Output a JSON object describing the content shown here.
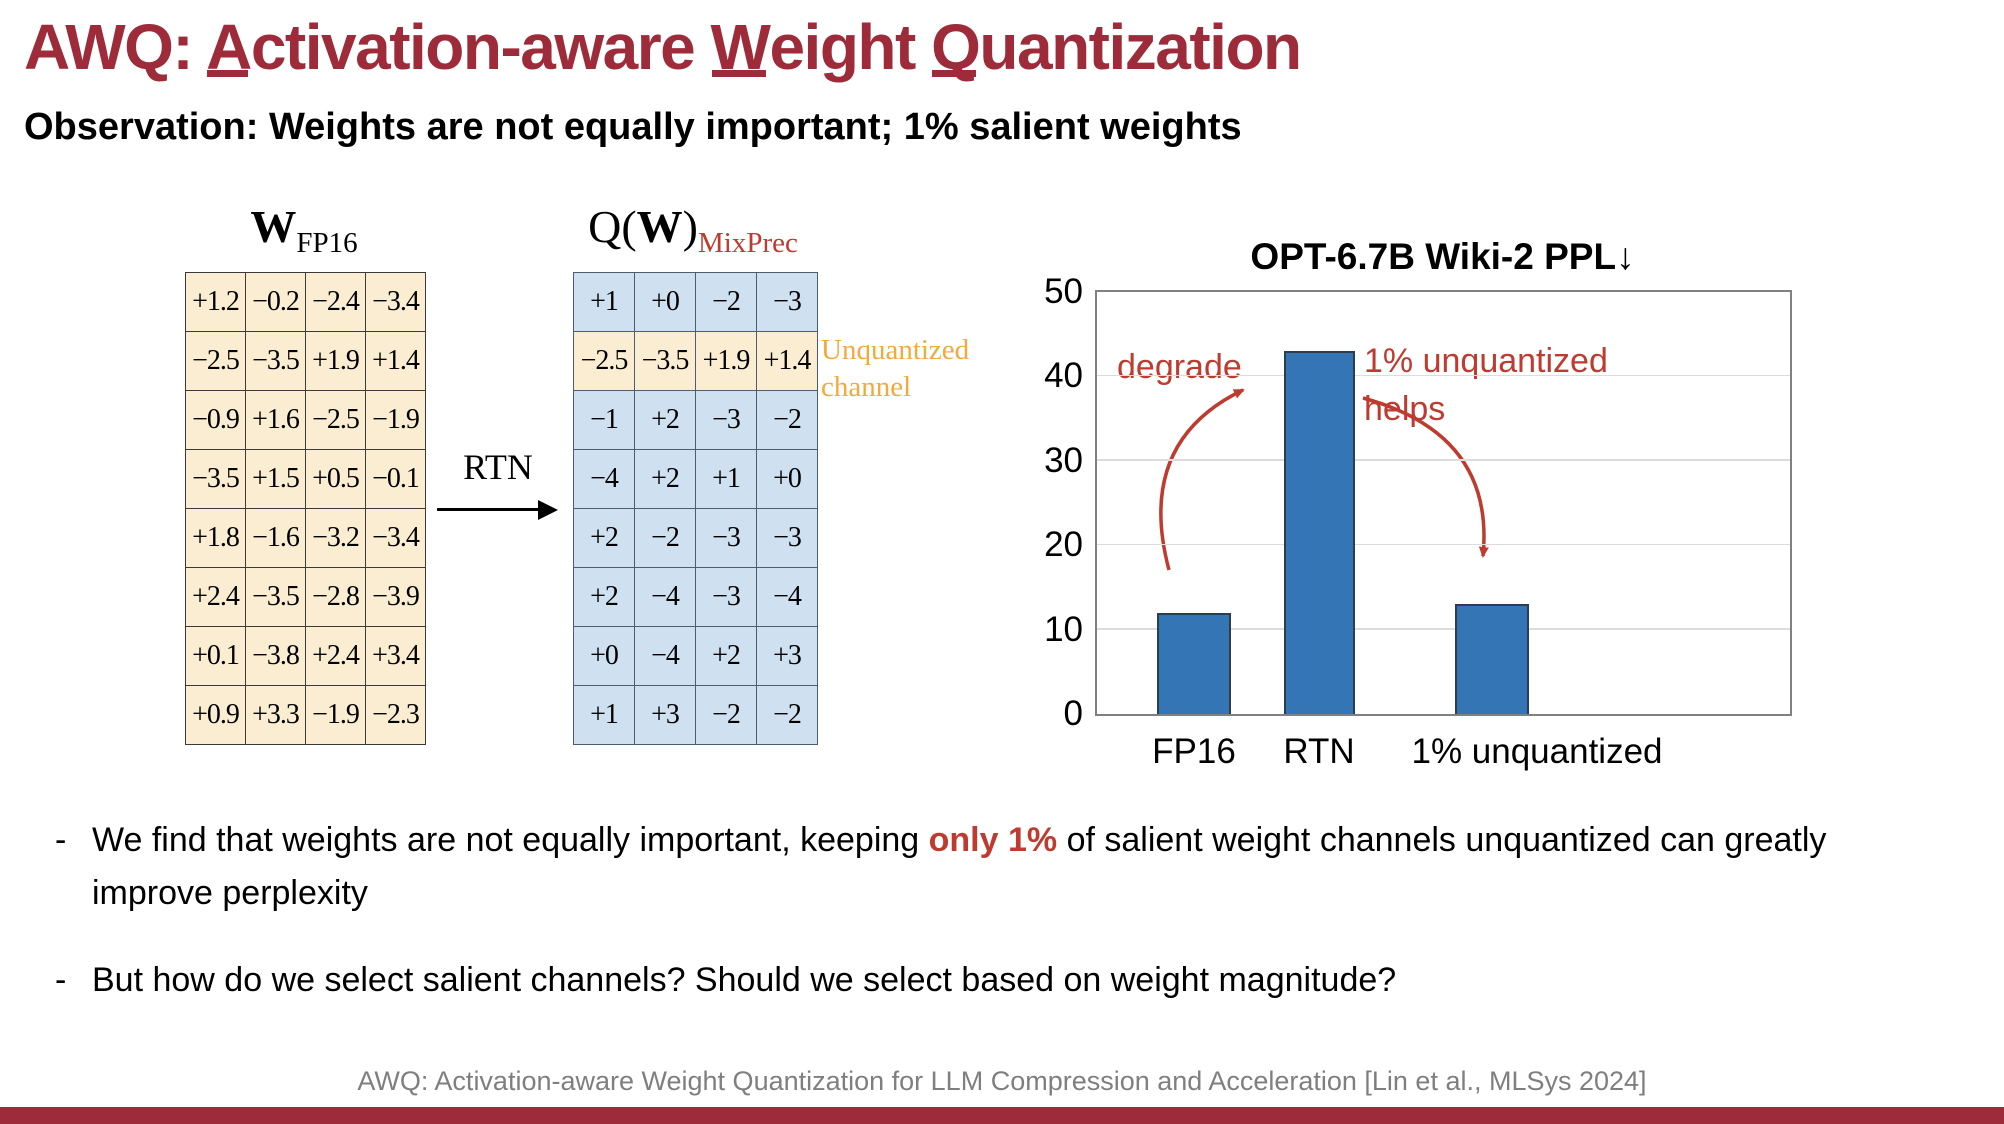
{
  "colors": {
    "title_maroon": "#9E2B3A",
    "accent_red": "#BE3B2F",
    "unquantized_orange": "#F5A93C",
    "tan_cell": "#FAEDD2",
    "blue_cell": "#CFE0F1",
    "bar_blue": "#3375B5",
    "footer_gray": "#7F7F7F"
  },
  "header": {
    "title_segments": [
      {
        "text": "AWQ: ",
        "u": false
      },
      {
        "text": "A",
        "u": true
      },
      {
        "text": "ctivation-aware ",
        "u": false
      },
      {
        "text": "W",
        "u": true
      },
      {
        "text": "eight ",
        "u": false
      },
      {
        "text": "Q",
        "u": true
      },
      {
        "text": "uantization",
        "u": false
      }
    ],
    "subtitle": "Observation: Weights are not equally important; 1% salient weights"
  },
  "diagram": {
    "left_matrix": {
      "label_main": "W",
      "label_sub": "FP16",
      "rows": [
        [
          "+1.2",
          "−0.2",
          "−2.4",
          "−3.4"
        ],
        [
          "−2.5",
          "−3.5",
          "+1.9",
          "+1.4"
        ],
        [
          "−0.9",
          "+1.6",
          "−2.5",
          "−1.9"
        ],
        [
          "−3.5",
          "+1.5",
          "+0.5",
          "−0.1"
        ],
        [
          "+1.8",
          "−1.6",
          "−3.2",
          "−3.4"
        ],
        [
          "+2.4",
          "−3.5",
          "−2.8",
          "−3.9"
        ],
        [
          "+0.1",
          "−3.8",
          "+2.4",
          "+3.4"
        ],
        [
          "+0.9",
          "+3.3",
          "−1.9",
          "−2.3"
        ]
      ]
    },
    "transform": {
      "label": "RTN"
    },
    "right_matrix": {
      "label_prefix": "Q(",
      "label_w": "W",
      "label_close": ")",
      "label_sub": "MixPrec",
      "highlight_row": 1,
      "rows": [
        [
          "+1",
          "+0",
          "−2",
          "−3"
        ],
        [
          "−2.5",
          "−3.5",
          "+1.9",
          "+1.4"
        ],
        [
          "−1",
          "+2",
          "−3",
          "−2"
        ],
        [
          "−4",
          "+2",
          "+1",
          "+0"
        ],
        [
          "+2",
          "−2",
          "−3",
          "−3"
        ],
        [
          "+2",
          "−4",
          "−3",
          "−4"
        ],
        [
          "+0",
          "−4",
          "+2",
          "+3"
        ],
        [
          "+1",
          "+3",
          "−2",
          "−2"
        ]
      ]
    },
    "unquantized_label": "Unquantized channel"
  },
  "chart_data": {
    "type": "bar",
    "title": "OPT-6.7B Wiki-2 PPL↓",
    "categories": [
      "FP16",
      "RTN",
      "1% unquantized"
    ],
    "values": [
      12,
      43,
      13
    ],
    "xlabel": "",
    "ylabel": "",
    "ylim": [
      0,
      50
    ],
    "yticks": [
      0,
      10,
      20,
      30,
      40,
      50
    ],
    "grid": true,
    "bar_color": "#3375B5",
    "annotations": [
      {
        "text": "degrade",
        "color": "#BE3B2F"
      },
      {
        "text": "1% unquantized",
        "color": "#BE3B2F"
      },
      {
        "text": "helps",
        "color": "#BE3B2F"
      }
    ]
  },
  "bullet_marker": "-",
  "bullets": [
    {
      "segments": [
        {
          "text": "We find that weights are not equally important, keeping ",
          "em": false
        },
        {
          "text": "only 1%",
          "em": true
        },
        {
          "text": " of salient weight channels unquantized can greatly improve perplexity",
          "em": false
        }
      ]
    },
    {
      "segments": [
        {
          "text": "But how do we select salient channels? Should we select based on weight magnitude?",
          "em": false
        }
      ]
    }
  ],
  "footer": {
    "citation": "AWQ: Activation-aware Weight Quantization for LLM Compression and Acceleration  [Lin et al., MLSys 2024]"
  }
}
